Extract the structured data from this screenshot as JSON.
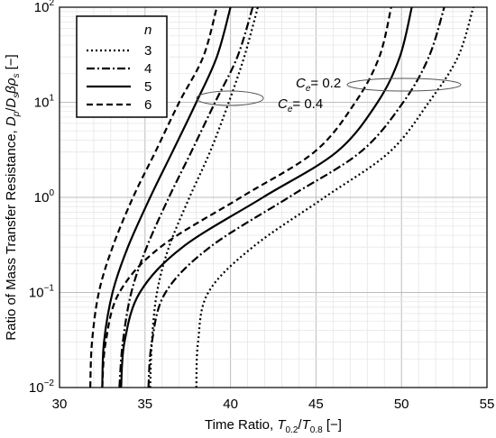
{
  "chart_data": {
    "type": "line",
    "xlabel_main": "Time Ratio, ",
    "xlabel_var": "T",
    "xlabel_sub1": "0.2",
    "xlabel_slash": "/",
    "xlabel_var2": "T",
    "xlabel_sub2": "0.8",
    "xlabel_unit": " [−]",
    "ylabel_main": "Ratio of Mass Transfer Resistance, ",
    "ylabel_expr": "D",
    "ylabel_sub1": "p",
    "ylabel_slash": "/",
    "ylabel_expr2": "D",
    "ylabel_sub2": "s",
    "ylabel_beta": "βρ",
    "ylabel_sub3": "s",
    "ylabel_unit": " [−]",
    "xlim": [
      30,
      55
    ],
    "ylim": [
      0.01,
      100
    ],
    "yscale": "log",
    "grid": true,
    "x_ticks": [
      "30",
      "35",
      "40",
      "45",
      "50",
      "55"
    ],
    "y_ticks": [
      {
        "base": "10",
        "exp": "−2"
      },
      {
        "base": "10",
        "exp": "−1"
      },
      {
        "base": "10",
        "exp": "0"
      },
      {
        "base": "10",
        "exp": "1"
      },
      {
        "base": "10",
        "exp": "2"
      }
    ],
    "legend": {
      "title": "n",
      "position": "top-left",
      "entries": [
        {
          "label": "3",
          "style": "dotted"
        },
        {
          "label": "4",
          "style": "dashdot"
        },
        {
          "label": "5",
          "style": "solid"
        },
        {
          "label": "6",
          "style": "dashed"
        }
      ]
    },
    "annotations": [
      {
        "var": "C",
        "sub": "e",
        "text": "= 0.2"
      },
      {
        "var": "C",
        "sub": "e",
        "text": "= 0.4"
      }
    ],
    "series": [
      {
        "group": "Ce=0.4",
        "n": "3",
        "style": "dotted",
        "points": [
          [
            35.3,
            0.01
          ],
          [
            35.4,
            0.03
          ],
          [
            35.7,
            0.1
          ],
          [
            36.4,
            0.3
          ],
          [
            37.6,
            1
          ],
          [
            38.8,
            3
          ],
          [
            39.9,
            10
          ],
          [
            40.8,
            30
          ],
          [
            41.6,
            100
          ]
        ]
      },
      {
        "group": "Ce=0.4",
        "n": "4",
        "style": "dashdot",
        "points": [
          [
            33.5,
            0.01
          ],
          [
            33.7,
            0.03
          ],
          [
            34.2,
            0.1
          ],
          [
            35.1,
            0.3
          ],
          [
            36.4,
            1
          ],
          [
            37.7,
            3
          ],
          [
            39.1,
            10
          ],
          [
            40.4,
            30
          ],
          [
            41.3,
            100
          ]
        ]
      },
      {
        "group": "Ce=0.4",
        "n": "5",
        "style": "solid",
        "points": [
          [
            32.5,
            0.01
          ],
          [
            32.6,
            0.03
          ],
          [
            33.1,
            0.1
          ],
          [
            34.0,
            0.3
          ],
          [
            35.3,
            1
          ],
          [
            36.6,
            3
          ],
          [
            38.0,
            10
          ],
          [
            39.2,
            30
          ],
          [
            40.0,
            100
          ]
        ]
      },
      {
        "group": "Ce=0.4",
        "n": "6",
        "style": "dashed",
        "points": [
          [
            31.8,
            0.01
          ],
          [
            31.9,
            0.03
          ],
          [
            32.3,
            0.1
          ],
          [
            33.1,
            0.3
          ],
          [
            34.3,
            1
          ],
          [
            35.6,
            3
          ],
          [
            37.0,
            10
          ],
          [
            38.4,
            30
          ],
          [
            39.2,
            100
          ]
        ]
      },
      {
        "group": "Ce=0.2",
        "n": "3",
        "style": "dotted",
        "points": [
          [
            38.0,
            0.01
          ],
          [
            38.1,
            0.03
          ],
          [
            38.7,
            0.1
          ],
          [
            41.3,
            0.3
          ],
          [
            45.5,
            1
          ],
          [
            49.3,
            3
          ],
          [
            51.6,
            10
          ],
          [
            53.3,
            30
          ],
          [
            54.2,
            100
          ]
        ]
      },
      {
        "group": "Ce=0.2",
        "n": "4",
        "style": "dashdot",
        "points": [
          [
            35.2,
            0.01
          ],
          [
            35.4,
            0.03
          ],
          [
            36.2,
            0.1
          ],
          [
            38.8,
            0.3
          ],
          [
            43.4,
            1
          ],
          [
            47.6,
            3
          ],
          [
            50.1,
            10
          ],
          [
            51.6,
            30
          ],
          [
            52.5,
            100
          ]
        ]
      },
      {
        "group": "Ce=0.2",
        "n": "5",
        "style": "solid",
        "points": [
          [
            33.6,
            0.01
          ],
          [
            33.8,
            0.03
          ],
          [
            34.7,
            0.1
          ],
          [
            37.2,
            0.3
          ],
          [
            41.9,
            1
          ],
          [
            46.2,
            3
          ],
          [
            48.6,
            10
          ],
          [
            49.9,
            30
          ],
          [
            50.6,
            100
          ]
        ]
      },
      {
        "group": "Ce=0.2",
        "n": "6",
        "style": "dashed",
        "points": [
          [
            32.5,
            0.01
          ],
          [
            32.7,
            0.03
          ],
          [
            33.5,
            0.1
          ],
          [
            35.9,
            0.3
          ],
          [
            40.6,
            1
          ],
          [
            44.9,
            3
          ],
          [
            47.3,
            10
          ],
          [
            48.7,
            30
          ],
          [
            49.4,
            100
          ]
        ]
      }
    ]
  }
}
